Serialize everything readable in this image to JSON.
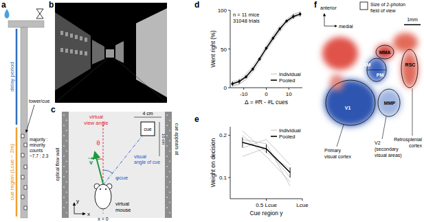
{
  "panel_a": {
    "label": "a",
    "delay": "delay period",
    "cue_region": "cue region (Lcue ~ 2m)",
    "tower": "tower/cue",
    "ratio": [
      "majority :",
      "minority",
      "counts",
      "~7.7 : 2.3"
    ]
  },
  "panel_b": {
    "label": "b"
  },
  "panel_c": {
    "label": "c",
    "view_angle": [
      "virtual",
      "view angle"
    ],
    "theta": "θ",
    "visual_angle": [
      "visual",
      "angle of cue"
    ],
    "phi": "φcue",
    "width": "4 cm",
    "cue": "cue",
    "length": "10 cm",
    "appears": "cue appears at",
    "wall": "optical flow wall",
    "mouse": [
      "virtual",
      "mouse"
    ],
    "v": "v",
    "x0": "x = 0",
    "x": "x",
    "y": "y"
  },
  "chart_data": [
    {
      "title": "d",
      "type": "line",
      "annotations": [
        "n = 11 mice",
        "31048 trials"
      ],
      "xlabel": "Δ = #R - #L cues",
      "ylabel": "Went right (%)",
      "x": [
        -15,
        -12,
        -9,
        -6,
        -3,
        0,
        3,
        6,
        9,
        12,
        15
      ],
      "xlim": [
        -16,
        16
      ],
      "xticks": [
        -10,
        0,
        10
      ],
      "ylim": [
        0,
        100
      ],
      "yticks": [
        0,
        50,
        100
      ],
      "legend": "bottom-right",
      "series": [
        {
          "name": "Individual",
          "color": "#b0b0b0",
          "values": [
            8,
            10,
            18,
            28,
            40,
            55,
            68,
            80,
            88,
            94,
            97
          ]
        },
        {
          "name": "Individual",
          "color": "#b0b0b0",
          "values": [
            3,
            5,
            10,
            20,
            33,
            48,
            60,
            72,
            83,
            90,
            93
          ]
        },
        {
          "name": "Individual",
          "color": "#b0b0b0",
          "values": [
            6,
            9,
            16,
            26,
            36,
            52,
            66,
            78,
            85,
            90,
            96
          ]
        },
        {
          "name": "Individual",
          "color": "#b0b0b0",
          "values": [
            2,
            4,
            12,
            22,
            38,
            50,
            62,
            74,
            88,
            95,
            98
          ]
        },
        {
          "name": "Pooled",
          "color": "#000000",
          "marker": "circle",
          "values": [
            5,
            8,
            14,
            24,
            37,
            51,
            64,
            76,
            86,
            92,
            95
          ],
          "errors": [
            3,
            3,
            2,
            2,
            2,
            2,
            2,
            2,
            2,
            3,
            3
          ]
        }
      ]
    },
    {
      "title": "e",
      "type": "line",
      "xlabel": "Cue region y",
      "ylabel": "Weight on decision",
      "x": [
        0.17,
        0.5,
        0.83
      ],
      "xlim": [
        0,
        1
      ],
      "xticks": [
        {
          "value": 0.5,
          "label": "0.5 Lcue"
        },
        {
          "value": 1,
          "label": "Lcue"
        }
      ],
      "ylim": [
        0.05,
        0.22
      ],
      "yticks": [
        0.1,
        0.2
      ],
      "legend": "top-right",
      "series": [
        {
          "name": "Individual",
          "color": "#b0b0b0",
          "values": [
            0.2,
            0.15,
            0.09
          ]
        },
        {
          "name": "Individual",
          "color": "#b0b0b0",
          "values": [
            0.17,
            0.19,
            0.13
          ]
        },
        {
          "name": "Individual",
          "color": "#b0b0b0",
          "values": [
            0.21,
            0.16,
            0.12
          ]
        },
        {
          "name": "Individual",
          "color": "#b0b0b0",
          "values": [
            0.15,
            0.17,
            0.1
          ]
        },
        {
          "name": "Individual",
          "color": "#b0b0b0",
          "values": [
            0.19,
            0.18,
            0.08
          ]
        },
        {
          "name": "Pooled",
          "color": "#000000",
          "values": [
            0.183,
            0.168,
            0.112
          ],
          "errors": [
            0.012,
            0.01,
            0.012
          ]
        }
      ]
    }
  ],
  "panel_f": {
    "label": "f",
    "anterior": "anterior",
    "medial": "medial",
    "fov": [
      "Size of 2-photon",
      "field of view"
    ],
    "scale": "1mm",
    "areas": [
      "MMA",
      "RSC",
      "AM",
      "PM",
      "V1",
      "MMP"
    ],
    "primary": [
      "Primary",
      "visual cortex"
    ],
    "v2": [
      "V2",
      "(secondary",
      "visual areas)"
    ],
    "rsc": [
      "Retrosplenial",
      "cortex"
    ]
  }
}
